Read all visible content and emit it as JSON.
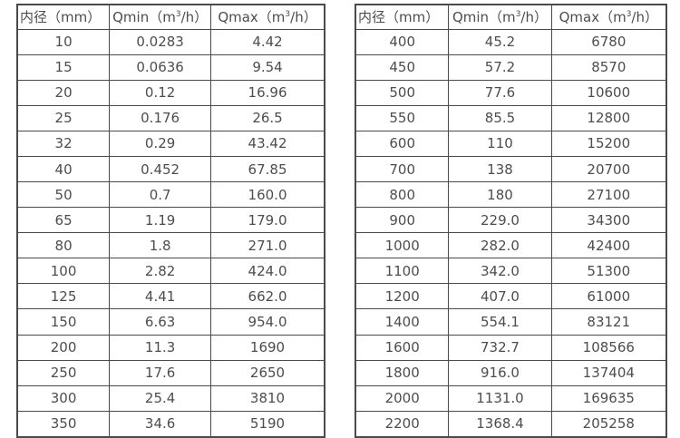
{
  "colors": {
    "background": "#ffffff",
    "text": "#4d4d4d",
    "border": "#4a4a4a"
  },
  "tables": [
    {
      "name": "small-diameter-spec-table",
      "headers": [
        {
          "text": "内径（mm）"
        },
        {
          "pre": "Qmin（m",
          "sup": "3",
          "post": "/h）"
        },
        {
          "pre": "Qmax（m",
          "sup": "3",
          "post": "/h）"
        }
      ],
      "rows": [
        [
          "10",
          "0.0283",
          "4.42"
        ],
        [
          "15",
          "0.0636",
          "9.54"
        ],
        [
          "20",
          "0.12",
          "16.96"
        ],
        [
          "25",
          "0.176",
          "26.5"
        ],
        [
          "32",
          "0.29",
          "43.42"
        ],
        [
          "40",
          "0.452",
          "67.85"
        ],
        [
          "50",
          "0.7",
          "160.0"
        ],
        [
          "65",
          "1.19",
          "179.0"
        ],
        [
          "80",
          "1.8",
          "271.0"
        ],
        [
          "100",
          "2.82",
          "424.0"
        ],
        [
          "125",
          "4.41",
          "662.0"
        ],
        [
          "150",
          "6.63",
          "954.0"
        ],
        [
          "200",
          "11.3",
          "1690"
        ],
        [
          "250",
          "17.6",
          "2650"
        ],
        [
          "300",
          "25.4",
          "3810"
        ],
        [
          "350",
          "34.6",
          "5190"
        ]
      ]
    },
    {
      "name": "large-diameter-spec-table",
      "headers": [
        {
          "text": "内径（mm）"
        },
        {
          "pre": "Qmin（m",
          "sup": "3",
          "post": "/h）"
        },
        {
          "pre": "Qmax（m",
          "sup": "3",
          "post": "/h）"
        }
      ],
      "rows": [
        [
          "400",
          "45.2",
          "6780"
        ],
        [
          "450",
          "57.2",
          "8570"
        ],
        [
          "500",
          "77.6",
          "10600"
        ],
        [
          "550",
          "85.5",
          "12800"
        ],
        [
          "600",
          "110",
          "15200"
        ],
        [
          "700",
          "138",
          "20700"
        ],
        [
          "800",
          "180",
          "27100"
        ],
        [
          "900",
          "229.0",
          "34300"
        ],
        [
          "1000",
          "282.0",
          "42400"
        ],
        [
          "1100",
          "342.0",
          "51300"
        ],
        [
          "1200",
          "407.0",
          "61000"
        ],
        [
          "1400",
          "554.1",
          "83121"
        ],
        [
          "1600",
          "732.7",
          "108566"
        ],
        [
          "1800",
          "916.0",
          "137404"
        ],
        [
          "2000",
          "1131.0",
          "169635"
        ],
        [
          "2200",
          "1368.4",
          "205258"
        ]
      ]
    }
  ]
}
